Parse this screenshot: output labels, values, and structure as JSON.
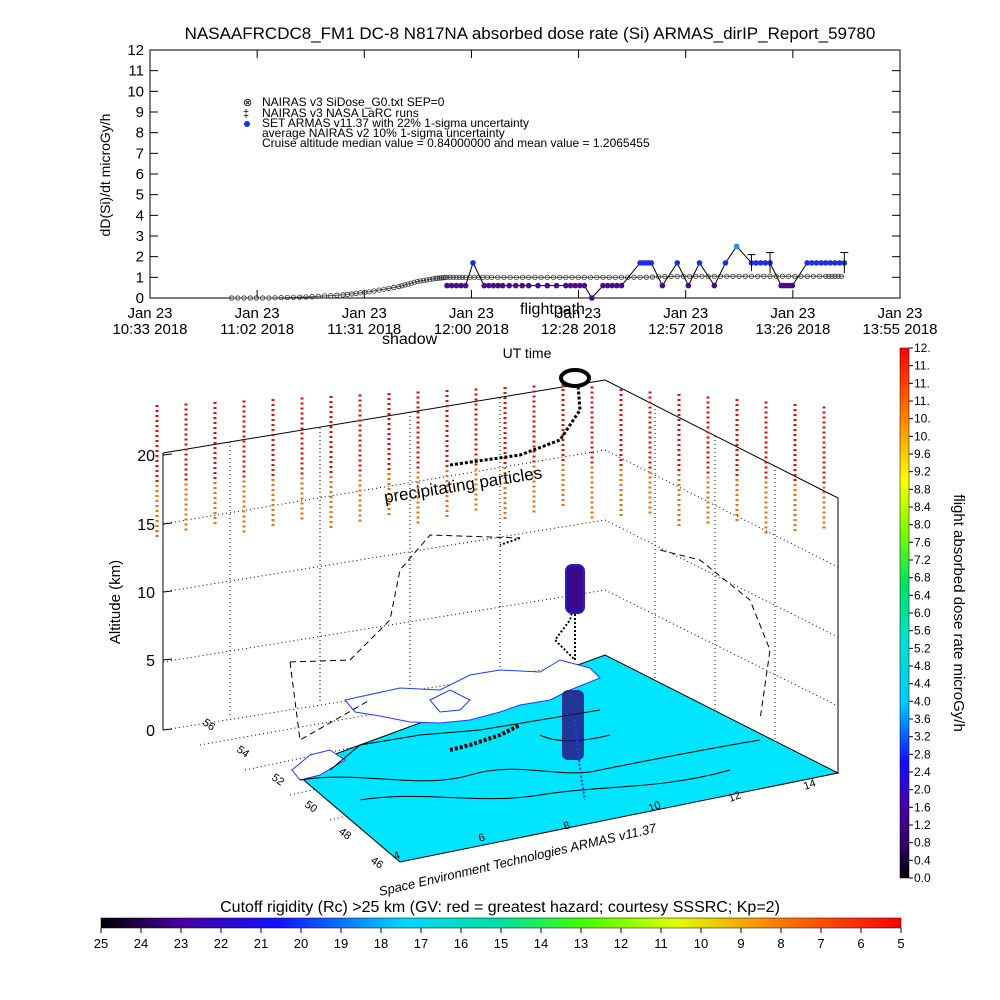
{
  "title": "NASAAFRCDC8_FM1 DC-8   N817NA absorbed dose rate (Si) ARMAS_dirIP_Report_59780",
  "top_chart": {
    "ylabel": "dD(Si)/dt microGy/h",
    "xlabel": "UT time",
    "y_ticks": [
      "0",
      "1",
      "2",
      "3",
      "4",
      "5",
      "6",
      "7",
      "8",
      "9",
      "10",
      "11",
      "12"
    ],
    "x_ticks": [
      {
        "top": "Jan 23",
        "bottom": "10:33 2018"
      },
      {
        "top": "Jan 23",
        "bottom": "11:02 2018"
      },
      {
        "top": "Jan 23",
        "bottom": "11:31 2018"
      },
      {
        "top": "Jan 23",
        "bottom": "12:00 2018"
      },
      {
        "top": "Jan 23",
        "bottom": "12:28 2018"
      },
      {
        "top": "Jan 23",
        "bottom": "12:57 2018"
      },
      {
        "top": "Jan 23",
        "bottom": "13:26 2018"
      },
      {
        "top": "Jan 23",
        "bottom": "13:55 2018"
      }
    ],
    "legend": [
      "NAIRAS v3 SiDose_G0.txt SEP=0",
      "NAIRAS v3 NASA LaRC runs",
      "SET ARMAS v11.37 with 22% 1-sigma uncertainty",
      "average NAIRAS v2 10% 1-sigma uncertainty",
      "Cruise altitude median value = 0.84000000 and mean value = 1.2065455"
    ],
    "overlay_labels": [
      "flightpath",
      "shadow"
    ]
  },
  "chart_data": [
    {
      "type": "scatter",
      "title": "NASAAFRCDC8_FM1 DC-8   N817NA absorbed dose rate (Si) ARMAS_dirIP_Report_59780",
      "xlabel": "UT time",
      "ylabel": "dD(Si)/dt microGy/h",
      "ylim": [
        0,
        12
      ],
      "xlim_minutes_utc": [
        633,
        835
      ],
      "series": [
        {
          "name": "NAIRAS v3 SiDose_G0.txt SEP=0",
          "x": [
            655,
            665,
            675,
            685,
            692,
            700,
            705,
            710,
            713,
            718,
            725,
            735,
            745,
            755,
            765,
            775,
            785,
            795,
            805,
            815,
            820
          ],
          "y": [
            0,
            0,
            0.05,
            0.15,
            0.3,
            0.55,
            0.8,
            0.95,
            1.0,
            1.0,
            1.0,
            1.0,
            1.0,
            1.0,
            1.0,
            1.05,
            1.05,
            1.05,
            1.05,
            1.05,
            1.05
          ]
        },
        {
          "name": "SET ARMAS v11.37 with 22% 1-sigma uncertainty",
          "x": [
            713,
            718,
            720,
            723,
            728,
            735,
            745,
            750,
            752,
            755,
            760,
            765,
            768,
            771,
            775,
            778,
            781,
            785,
            788,
            791,
            795,
            800,
            803,
            806,
            810,
            815,
            820
          ],
          "y": [
            0.6,
            0.6,
            1.7,
            0.6,
            0.6,
            0.6,
            0.6,
            0.6,
            0.0,
            0.6,
            0.6,
            1.7,
            1.7,
            0.6,
            1.7,
            0.6,
            1.7,
            0.6,
            1.7,
            2.5,
            1.7,
            1.7,
            0.6,
            0.6,
            1.7,
            1.7,
            1.7
          ]
        }
      ]
    },
    {
      "type": "scatter",
      "subtype": "3d-flight-profile",
      "zlabel": "Altitude (km)",
      "z_ticks": [
        0,
        5,
        10,
        15,
        20
      ],
      "lat_ticks": [
        46,
        48,
        50,
        52,
        54,
        56
      ],
      "lon_ticks": [
        4,
        6,
        8,
        10,
        12,
        14
      ],
      "annotations": [
        "precipitating particles",
        "Space Environment Technologies ARMAS v11.37"
      ],
      "colorbar_right": {
        "label": "flight absorbed dose rate microGy/h",
        "ticks": [
          "0.0",
          "0.4",
          "0.8",
          "1.2",
          "1.6",
          "2.0",
          "2.4",
          "2.8",
          "3.2",
          "3.6",
          "4.0",
          "4.4",
          "4.8",
          "5.2",
          "5.6",
          "6.0",
          "6.4",
          "6.8",
          "7.2",
          "7.6",
          "8.0",
          "8.4",
          "8.8",
          "9.2",
          "9.6",
          "10.",
          "10.",
          "11.",
          "11.",
          "11.",
          "12."
        ]
      },
      "colorbar_bottom": {
        "label": "Cutoff rigidity (Rc) >25 km (GV: red = greatest hazard; courtesy SSSRC; Kp=2)",
        "ticks": [
          "25",
          "24",
          "23",
          "22",
          "21",
          "20",
          "19",
          "18",
          "17",
          "16",
          "15",
          "14",
          "13",
          "12",
          "11",
          "10",
          "9",
          "8",
          "7",
          "6",
          "5"
        ]
      }
    }
  ],
  "three_d": {
    "zlabel": "Altitude (km)",
    "z_ticks": [
      "0",
      "5",
      "10",
      "15",
      "20"
    ],
    "lat_ticks": [
      "46",
      "48",
      "50",
      "52",
      "54",
      "56"
    ],
    "lon_ticks": [
      "4",
      "6",
      "8",
      "10",
      "12",
      "14"
    ],
    "annotation": "precipitating particles",
    "credit": "Space Environment Technologies ARMAS v11.37"
  },
  "colorbar_right": {
    "label": "flight absorbed dose rate microGy/h",
    "ticks": [
      "0.0",
      "0.4",
      "0.8",
      "1.2",
      "1.6",
      "2.0",
      "2.4",
      "2.8",
      "3.2",
      "3.6",
      "4.0",
      "4.4",
      "4.8",
      "5.2",
      "5.6",
      "6.0",
      "6.4",
      "6.8",
      "7.2",
      "7.6",
      "8.0",
      "8.4",
      "8.8",
      "9.2",
      "9.6",
      "10.",
      "10.",
      "11.",
      "11.",
      "11.",
      "12."
    ]
  },
  "colorbar_bottom": {
    "label": "Cutoff rigidity (Rc) >25 km (GV: red = greatest hazard; courtesy SSSRC; Kp=2)",
    "ticks": [
      "25",
      "24",
      "23",
      "22",
      "21",
      "20",
      "19",
      "18",
      "17",
      "16",
      "15",
      "14",
      "13",
      "12",
      "11",
      "10",
      "9",
      "8",
      "7",
      "6",
      "5"
    ]
  },
  "colors": {
    "armas": "#1c2ee8",
    "armas_peak": "#1e90ff",
    "nairas": "#555555",
    "land": "#00e5ff",
    "sea": "#ffffff",
    "blue_dots": "#1f3cff",
    "red_high": "#d01010",
    "orange_mid": "#e07010"
  }
}
